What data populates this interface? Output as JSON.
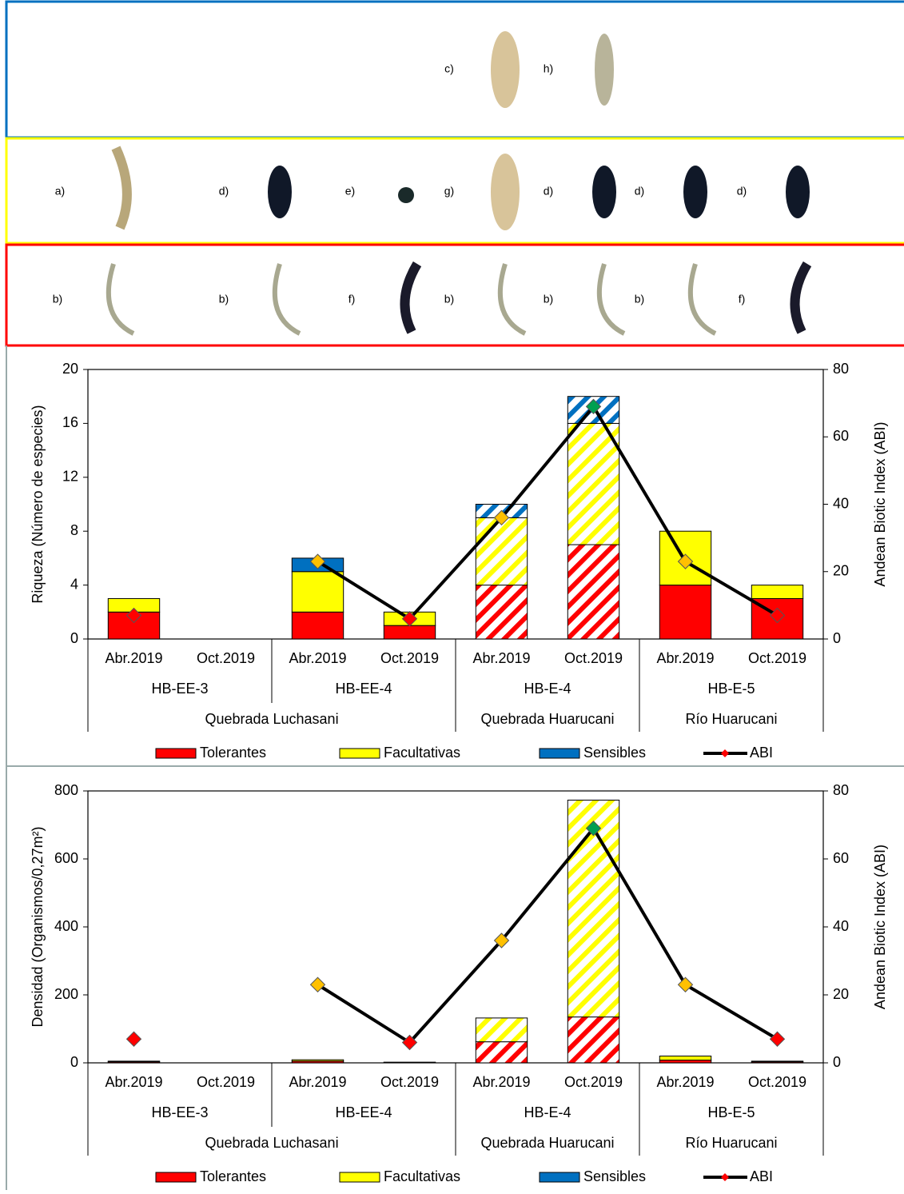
{
  "photo_rows": [
    {
      "labels": [
        "c)",
        "h)"
      ]
    },
    {
      "labels": [
        "a)",
        "d)",
        "e)",
        "g)",
        "d)",
        "d)",
        "d)"
      ]
    },
    {
      "labels": [
        "b)",
        "b)",
        "f)",
        "b)",
        "b)",
        "b)",
        "f)"
      ]
    }
  ],
  "chart_data": [
    {
      "type": "bar",
      "ylabel": "Riqueza (Número de especies)",
      "y2label": "Andean Biotic Index (ABI)",
      "categories": [
        "Abr.2019",
        "Oct.2019",
        "Abr.2019",
        "Oct.2019",
        "Abr.2019",
        "Oct.2019",
        "Abr.2019",
        "Oct.2019"
      ],
      "sites": [
        "HB-EE-3",
        null,
        "HB-EE-4",
        null,
        "HB-E-4",
        null,
        "HB-E-5",
        null
      ],
      "areas": [
        "Quebrada Luchasani",
        null,
        null,
        null,
        "Quebrada Huarucani",
        null,
        "Río Huarucani",
        null
      ],
      "hatched": [
        false,
        false,
        false,
        false,
        true,
        true,
        false,
        false
      ],
      "series": [
        {
          "name": "Tolerantes",
          "color": "#ff0000",
          "values": [
            2,
            0,
            2,
            1,
            4,
            7,
            4,
            3
          ]
        },
        {
          "name": "Facultativas",
          "color": "#ffff00",
          "values": [
            1,
            0,
            3,
            1,
            5,
            9,
            4,
            1
          ]
        },
        {
          "name": "Sensibles",
          "color": "#0070c0",
          "values": [
            0,
            0,
            1,
            0,
            1,
            2,
            0,
            0
          ]
        },
        {
          "name": "ABI",
          "type": "line",
          "axis": "y2",
          "color": "#000000",
          "values": [
            7,
            null,
            23,
            6,
            36,
            69,
            23,
            7
          ],
          "marker_colors": [
            "#ff0000",
            null,
            "#ffc000",
            "#ff0000",
            "#ffc000",
            "#00a050",
            "#ffc000",
            "#ff0000"
          ]
        }
      ],
      "ylim": [
        0,
        20
      ],
      "yticks": [
        0,
        4,
        8,
        12,
        16,
        20
      ],
      "y2lim": [
        0,
        80
      ],
      "y2ticks": [
        0,
        20,
        40,
        60,
        80
      ]
    },
    {
      "type": "bar",
      "ylabel": "Densidad (Organismos/0,27m²)",
      "y2label": "Andean Biotic Index (ABI)",
      "categories": [
        "Abr.2019",
        "Oct.2019",
        "Abr.2019",
        "Oct.2019",
        "Abr.2019",
        "Oct.2019",
        "Abr.2019",
        "Oct.2019"
      ],
      "sites": [
        "HB-EE-3",
        null,
        "HB-EE-4",
        null,
        "HB-E-4",
        null,
        "HB-E-5",
        null
      ],
      "areas": [
        "Quebrada Luchasani",
        null,
        null,
        null,
        "Quebrada Huarucani",
        null,
        "Río Huarucani",
        null
      ],
      "hatched": [
        false,
        false,
        false,
        false,
        true,
        true,
        false,
        false
      ],
      "series": [
        {
          "name": "Tolerantes",
          "color": "#ff0000",
          "values": [
            3,
            0,
            5,
            1,
            62,
            135,
            8,
            3
          ]
        },
        {
          "name": "Facultativas",
          "color": "#ffff00",
          "values": [
            2,
            0,
            4,
            1,
            70,
            638,
            12,
            2
          ]
        },
        {
          "name": "Sensibles",
          "color": "#0070c0",
          "values": [
            0,
            0,
            0,
            0,
            0,
            0,
            0,
            0
          ]
        },
        {
          "name": "ABI",
          "type": "line",
          "axis": "y2",
          "color": "#000000",
          "values": [
            7,
            null,
            23,
            6,
            36,
            69,
            23,
            7
          ],
          "marker_colors": [
            "#ff0000",
            null,
            "#ffc000",
            "#ff0000",
            "#ffc000",
            "#00a050",
            "#ffc000",
            "#ff0000"
          ]
        }
      ],
      "ylim": [
        0,
        800
      ],
      "yticks": [
        0,
        200,
        400,
        600,
        800
      ],
      "y2lim": [
        0,
        80
      ],
      "y2ticks": [
        0,
        20,
        40,
        60,
        80
      ]
    }
  ]
}
